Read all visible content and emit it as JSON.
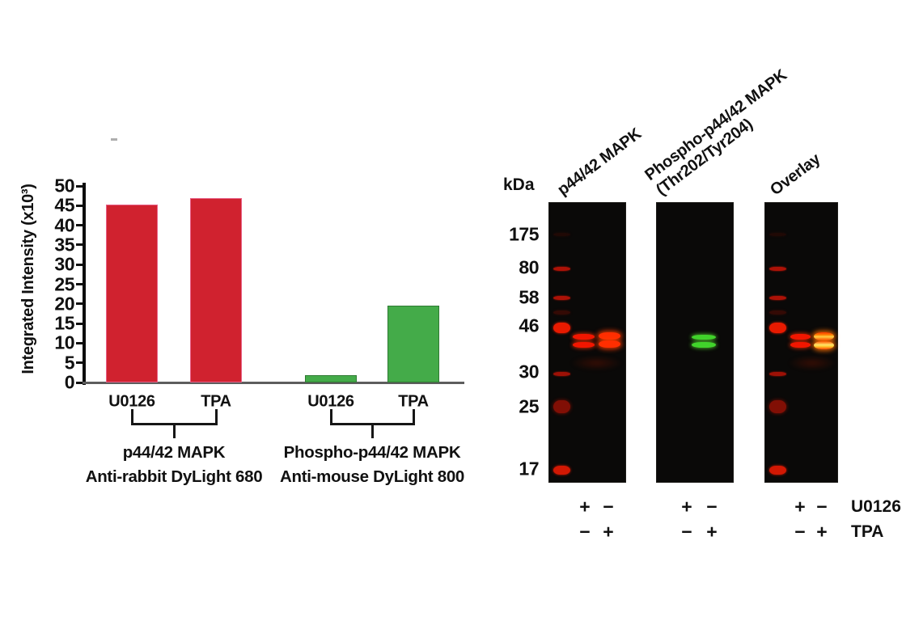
{
  "figure_title": "",
  "colors": {
    "bar_red": "#d0222f",
    "bar_red_edge": "#e85f86",
    "bar_green": "#44ab49",
    "bar_green_edge": "#2f7a33",
    "band_red": "#f21600",
    "band_red_bright": "#ff2e00",
    "band_green": "#41d32b",
    "band_overlay_yellow": "#ffd84a",
    "blot_background": "#0a0908",
    "axis": "#0c0c0c"
  },
  "chart_data": {
    "type": "bar",
    "title": "",
    "xlabel": "",
    "ylabel": "Integrated Intensity (x10³)",
    "ylim": [
      0,
      50
    ],
    "ytick_step": 5,
    "yticks": [
      0,
      5,
      10,
      15,
      20,
      25,
      30,
      35,
      40,
      45,
      50
    ],
    "grid": false,
    "legend": null,
    "categories": [
      "U0126",
      "TPA",
      "U0126",
      "TPA"
    ],
    "groups": [
      {
        "name": "p44/42 MAPK — Anti-rabbit DyLight 680",
        "label_lines": [
          "p44/42 MAPK",
          "Anti-rabbit DyLight 680"
        ],
        "color_key": "bar_red",
        "edge_key": "bar_red_edge",
        "bars": [
          {
            "category": "U0126",
            "value": 45.3
          },
          {
            "category": "TPA",
            "value": 47.0
          }
        ]
      },
      {
        "name": "Phospho-p44/42 MAPK — Anti-mouse DyLight 800",
        "label_lines": [
          "Phospho-p44/42 MAPK",
          "Anti-mouse DyLight 800"
        ],
        "color_key": "bar_green",
        "edge_key": "bar_green_edge",
        "bars": [
          {
            "category": "U0126",
            "value": 1.8
          },
          {
            "category": "TPA",
            "value": 19.5
          }
        ]
      }
    ]
  },
  "blot_panel": {
    "kda_label": "kDa",
    "marker_values": [
      "175",
      "80",
      "58",
      "46",
      "30",
      "25",
      "17"
    ],
    "panels": [
      {
        "title_lines": [
          "p44/42 MAPK"
        ],
        "ladder": true,
        "lanes": [
          {
            "treatment": "U0126",
            "doublet": "red",
            "bright": false
          },
          {
            "treatment": "TPA",
            "doublet": "red",
            "bright": true
          }
        ]
      },
      {
        "title_lines": [
          "Phospho-p44/42 MAPK",
          "(Thr202/Tyr204)"
        ],
        "ladder": false,
        "lanes": [
          {
            "treatment": "U0126",
            "doublet": "none",
            "bright": false
          },
          {
            "treatment": "TPA",
            "doublet": "green",
            "bright": false
          }
        ]
      },
      {
        "title_lines": [
          "Overlay"
        ],
        "ladder": true,
        "lanes": [
          {
            "treatment": "U0126",
            "doublet": "red",
            "bright": false
          },
          {
            "treatment": "TPA",
            "doublet": "overlay",
            "bright": true
          }
        ]
      }
    ],
    "treatments": [
      {
        "label": "U0126",
        "signs": [
          [
            "+",
            "−"
          ],
          [
            "+",
            "−"
          ],
          [
            "+",
            "−"
          ]
        ]
      },
      {
        "label": "TPA",
        "signs": [
          [
            "−",
            "+"
          ],
          [
            "−",
            "+"
          ],
          [
            "−",
            "+"
          ]
        ]
      }
    ]
  }
}
